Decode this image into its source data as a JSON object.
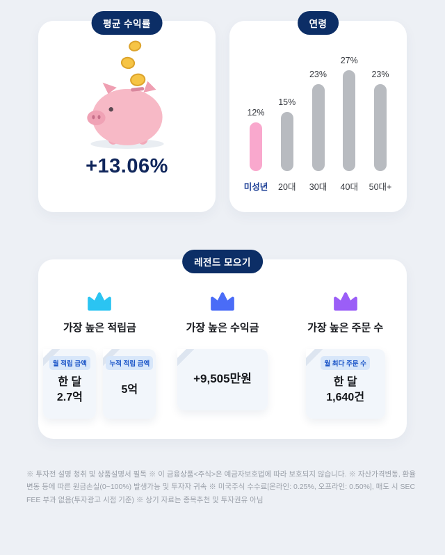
{
  "avg_return_card": {
    "badge": "평균 수익률",
    "value": "+13.06%"
  },
  "age_card": {
    "badge": "연령"
  },
  "chart_data": {
    "type": "bar",
    "title": "연령",
    "categories": [
      "미성년",
      "20대",
      "30대",
      "40대",
      "50대+"
    ],
    "values": [
      12,
      15,
      23,
      27,
      23
    ],
    "value_labels": [
      "12%",
      "15%",
      "23%",
      "27%",
      "23%"
    ],
    "highlight_index": 0,
    "bar_color": "#b8bbc0",
    "highlight_color": "#f9a8cd",
    "highlight_label_color": "#1d3f96",
    "ylim": [
      0,
      30
    ],
    "grid": false,
    "legend": "none"
  },
  "legend_card": {
    "badge": "레전드 모으기",
    "columns": [
      {
        "title": "가장 높은 적립금",
        "crown_color": "#2bc4f2",
        "notes": [
          {
            "tag": "월 적립 금액",
            "value_lines": [
              "한 달",
              "2.7억"
            ]
          },
          {
            "tag": "누적 적립 금액",
            "value_lines": [
              "5억"
            ]
          }
        ]
      },
      {
        "title": "가장 높은 수익금",
        "crown_color": "#4a6cf7",
        "notes": [
          {
            "tag": "",
            "value_lines": [
              "+9,505만원"
            ]
          }
        ]
      },
      {
        "title": "가장 높은 주문 수",
        "crown_color": "#9b5ef7",
        "notes": [
          {
            "tag": "월 최다 주문 수",
            "value_lines": [
              "한 달",
              "1,640건"
            ]
          }
        ]
      }
    ]
  },
  "disclaimer": "※ 투자전 설명 청취 및 상품설명서 필독 ※ 이 금융상품<주식>은 예금자보호법에 따라 보호되지 않습니다. ※ 자산가격변동, 환율변동 등에 따른 원금손실(0~100%) 발생가능 및 투자자 귀속 ※ 미국주식 수수료[온라인: 0.25%, 오프라인: 0.50%], 매도 시 SEC FEE 부과 없음(투자광고 시점 기준) ※ 상기 자료는 종목추천 및 투자권유 아님"
}
